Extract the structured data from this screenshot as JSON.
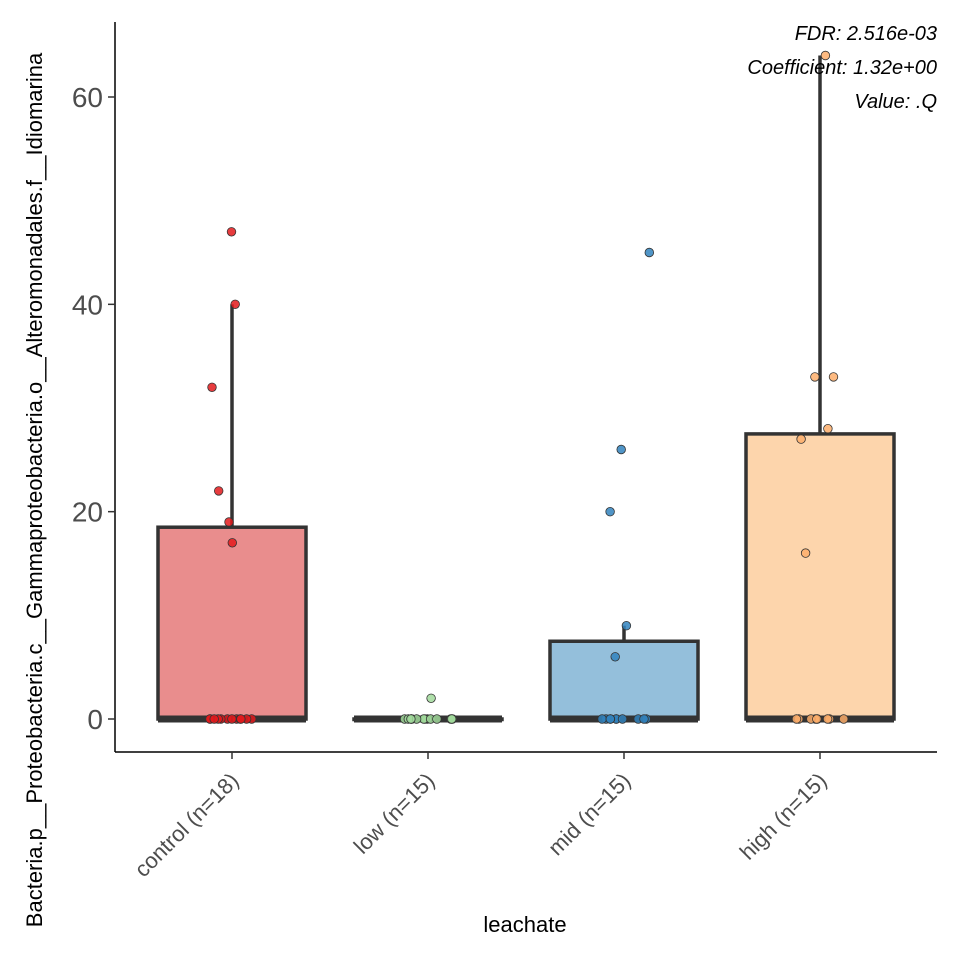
{
  "chart_data": {
    "type": "box",
    "xlabel": "leachate",
    "ylabel": "Bacteria.p__Proteobacteria.c__Gammaproteobacteria.o__Alteromonadales.f__Idiomarina",
    "ylim": [
      -4,
      67
    ],
    "yticks": [
      0,
      20,
      40,
      60
    ],
    "categories": [
      "control (n=18)",
      "low (n=15)",
      "mid (n=15)",
      "high (n=15)"
    ],
    "colors": {
      "fill": [
        "#e98d8d",
        "#a6d89b",
        "#94bfdb",
        "#fdd5ac"
      ],
      "points": [
        "#e31a1c",
        "#a1d99b",
        "#3182bd",
        "#fdae6b"
      ],
      "lines": "#333333"
    },
    "boxes": [
      {
        "category": "control (n=18)",
        "min": 0,
        "q1": 0,
        "median": 0,
        "q3": 18.5,
        "max": 40
      },
      {
        "category": "low (n=15)",
        "min": 0,
        "q1": 0,
        "median": 0,
        "q3": 0,
        "max": 0
      },
      {
        "category": "mid (n=15)",
        "min": 0,
        "q1": 0,
        "median": 0,
        "q3": 7.5,
        "max": 9
      },
      {
        "category": "high (n=15)",
        "min": 0,
        "q1": 0,
        "median": 0,
        "q3": 27.5,
        "max": 64
      }
    ],
    "points": [
      [
        47,
        40,
        32,
        22,
        19,
        17,
        0,
        0,
        0,
        0,
        0,
        0,
        0,
        0,
        0,
        0,
        0,
        0
      ],
      [
        2,
        0,
        0,
        0,
        0,
        0,
        0,
        0,
        0,
        0,
        0,
        0,
        0,
        0,
        0
      ],
      [
        45,
        26,
        20,
        9,
        6,
        0,
        0,
        0,
        0,
        0,
        0,
        0,
        0,
        0,
        0
      ],
      [
        64,
        33,
        33,
        28,
        27,
        16,
        0,
        0,
        0,
        0,
        0,
        0,
        0,
        0,
        0
      ]
    ],
    "annotations": [
      "FDR: 2.516e-03",
      "Coefficient: 1.32e+00",
      "Value: .Q"
    ],
    "grid": false,
    "legend": "none"
  }
}
